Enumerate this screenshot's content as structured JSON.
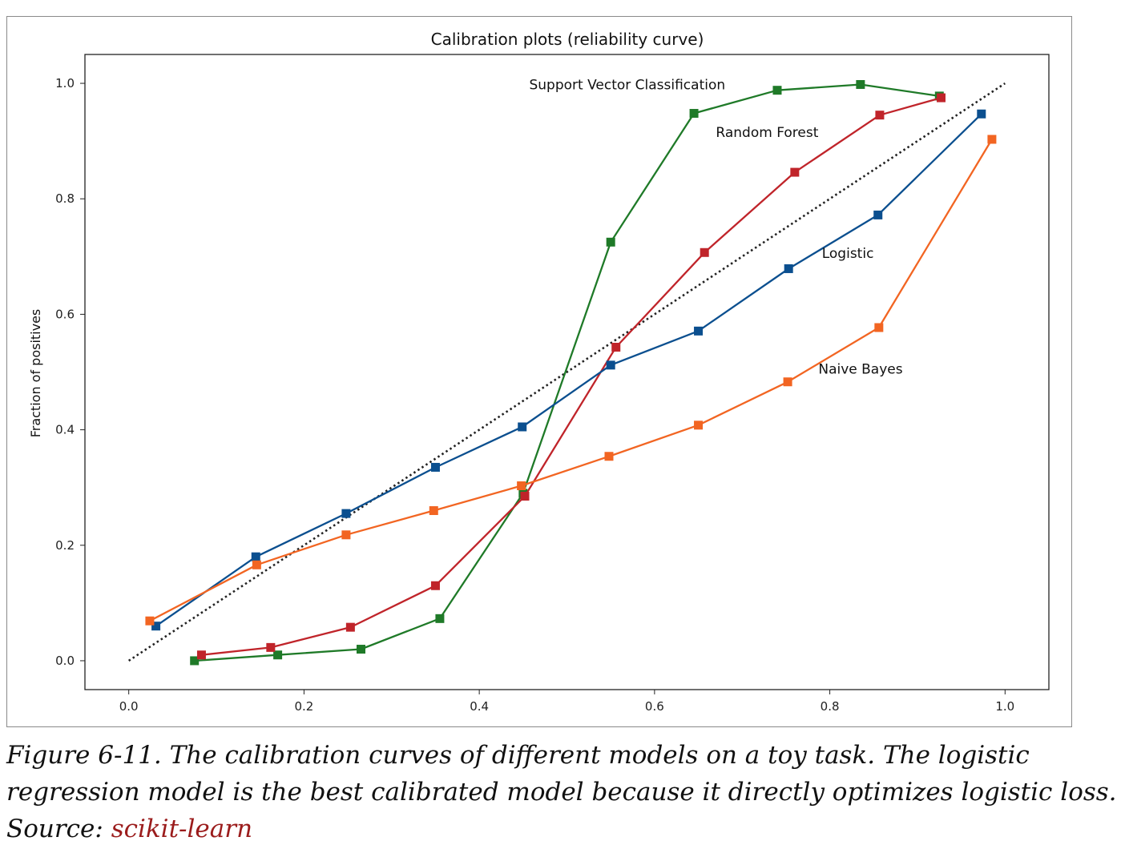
{
  "chart_data": {
    "type": "line",
    "title": "Calibration plots  (reliability curve)",
    "xlabel": "",
    "ylabel": "Fraction of positives",
    "xlim": [
      -0.05,
      1.05
    ],
    "ylim": [
      -0.05,
      1.05
    ],
    "xticks": [
      0.0,
      0.2,
      0.4,
      0.6,
      0.8,
      1.0
    ],
    "xtick_labels": [
      "0.0",
      "0.2",
      "0.4",
      "0.6",
      "0.8",
      "1.0"
    ],
    "yticks": [
      0.0,
      0.2,
      0.4,
      0.6,
      0.8,
      1.0
    ],
    "ytick_labels": [
      "0.0",
      "0.2",
      "0.4",
      "0.6",
      "0.8",
      "1.0"
    ],
    "grid": false,
    "reference_line": {
      "style": "dotted",
      "color": "#222222",
      "x": [
        0.0,
        1.0
      ],
      "y": [
        0.0,
        1.0
      ]
    },
    "series": [
      {
        "name": "Support Vector Classification",
        "color": "#1f7a28",
        "marker": "square",
        "x": [
          0.075,
          0.17,
          0.265,
          0.355,
          0.45,
          0.55,
          0.645,
          0.74,
          0.835,
          0.925
        ],
        "y": [
          0.0,
          0.01,
          0.02,
          0.073,
          0.29,
          0.725,
          0.948,
          0.988,
          0.998,
          0.978
        ]
      },
      {
        "name": "Random Forest",
        "color": "#c0242a",
        "marker": "square",
        "x": [
          0.083,
          0.162,
          0.253,
          0.35,
          0.452,
          0.556,
          0.657,
          0.76,
          0.857,
          0.927
        ],
        "y": [
          0.01,
          0.023,
          0.058,
          0.13,
          0.285,
          0.543,
          0.707,
          0.846,
          0.945,
          0.975
        ]
      },
      {
        "name": "Logistic",
        "color": "#0b4f8f",
        "marker": "square",
        "x": [
          0.031,
          0.145,
          0.248,
          0.35,
          0.449,
          0.55,
          0.65,
          0.753,
          0.855,
          0.973
        ],
        "y": [
          0.06,
          0.18,
          0.255,
          0.335,
          0.405,
          0.512,
          0.571,
          0.679,
          0.772,
          0.947
        ]
      },
      {
        "name": "Naive Bayes",
        "color": "#f26522",
        "marker": "square",
        "x": [
          0.024,
          0.146,
          0.248,
          0.348,
          0.448,
          0.548,
          0.65,
          0.752,
          0.856,
          0.985
        ],
        "y": [
          0.069,
          0.166,
          0.218,
          0.26,
          0.303,
          0.354,
          0.408,
          0.483,
          0.577,
          0.903
        ]
      }
    ],
    "annotations": [
      {
        "text": "Support Vector Classification",
        "x": 0.457,
        "y": 0.99
      },
      {
        "text": "Random Forest",
        "x": 0.67,
        "y": 0.907
      },
      {
        "text": "Logistic",
        "x": 0.791,
        "y": 0.698
      },
      {
        "text": "Naive Bayes",
        "x": 0.787,
        "y": 0.497
      }
    ]
  },
  "caption": {
    "text": "Figure 6-11. The calibration curves of different models on a toy task. The logistic regression model is the best calibrated model because it directly optimizes logistic loss. Source: ",
    "link_text": "scikit-learn",
    "link_color": "#9b1c1c"
  }
}
